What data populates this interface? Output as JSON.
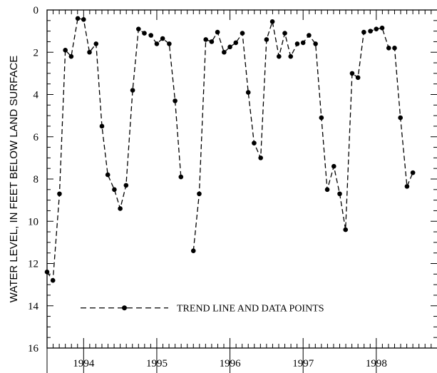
{
  "chart_data": {
    "type": "line",
    "title": "",
    "xlabel": "",
    "ylabel": "WATER LEVEL, IN FEET BELOW LAND SURFACE",
    "y_axis_inverted": true,
    "ylim": [
      0,
      16
    ],
    "yticks": [
      "0",
      "2",
      "4",
      "6",
      "8",
      "10",
      "12",
      "14",
      "16"
    ],
    "xlim": [
      1993.5,
      1998.83
    ],
    "year_labels": [
      "1994",
      "1995",
      "1996",
      "1997",
      "1998"
    ],
    "grid": false,
    "legend": {
      "label": "TREND LINE AND DATA POINTS",
      "placement": "bottom-center"
    },
    "series": [
      {
        "name": "TREND LINE AND DATA POINTS",
        "segments": [
          {
            "x": [
              1993.5,
              1993.58,
              1993.67,
              1993.75,
              1993.83,
              1993.92,
              1994.0,
              1994.08,
              1994.17,
              1994.25,
              1994.33,
              1994.42,
              1994.5,
              1994.58,
              1994.67,
              1994.75,
              1994.83,
              1994.92,
              1995.0,
              1995.08,
              1995.17,
              1995.25,
              1995.33,
              1995.42
            ],
            "y": [
              12.4,
              12.8,
              8.7,
              1.9,
              2.2,
              0.4,
              0.45,
              2.0,
              1.6,
              5.5,
              7.8,
              8.5,
              9.4,
              8.3,
              3.8,
              0.9,
              1.1,
              1.2,
              1.6,
              1.35,
              1.6,
              4.3,
              7.9,
              null
            ]
          },
          {
            "x": [
              1995.5,
              1995.58,
              1995.67,
              1995.75,
              1995.83,
              1995.92,
              1996.0,
              1996.08,
              1996.17,
              1996.25,
              1996.33,
              1996.42,
              1996.5,
              1996.58,
              1996.67,
              1996.75,
              1996.83,
              1996.92,
              1997.0,
              1997.08,
              1997.17,
              1997.25,
              1997.33,
              1997.42,
              1997.5,
              1997.58,
              1997.67,
              1997.75,
              1997.83,
              1997.92,
              1998.0,
              1998.08,
              1998.17,
              1998.25,
              1998.33,
              1998.42,
              1998.5,
              1998.58,
              1998.67,
              1998.75,
              1998.83
            ],
            "y": [
              11.4,
              8.7,
              1.4,
              1.5,
              1.05,
              2.0,
              1.75,
              1.55,
              1.1,
              3.9,
              6.3,
              7.0,
              1.4,
              0.55,
              2.2,
              1.1,
              2.2,
              1.6,
              1.55,
              1.2,
              1.6,
              5.1,
              8.5,
              7.4,
              8.7,
              10.4,
              3.0,
              3.2,
              1.05,
              1.0,
              0.9,
              0.85,
              1.8,
              1.8,
              5.1,
              8.35,
              7.7,
              null,
              null,
              null,
              null
            ]
          }
        ]
      }
    ]
  }
}
